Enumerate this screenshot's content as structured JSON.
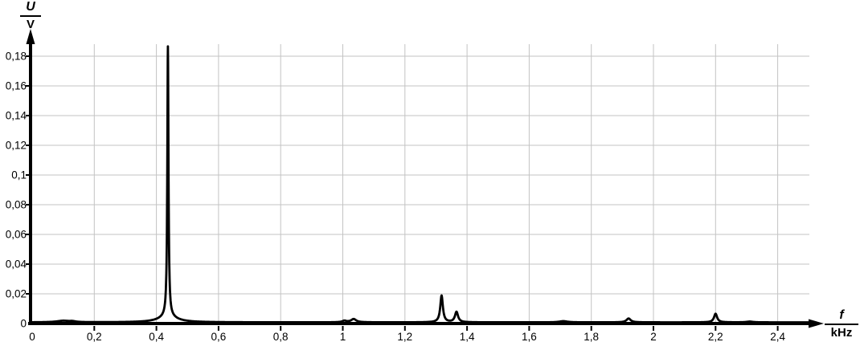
{
  "page": {
    "background": "#ffffff"
  },
  "chart_data": {
    "type": "line",
    "title": "",
    "description": "Frequency spectrum: voltage amplitude U in volts versus frequency f in kilohertz, dominant peak near 0.44 kHz",
    "line_color": "#000000",
    "grid_color": "#c3c3c3",
    "axis_color": "#000000",
    "grid": true,
    "legend": "none",
    "x_axis": {
      "quantity": "f",
      "unit": "kHz",
      "min": 0,
      "max": 2.55,
      "tick_step": 0.2,
      "ticks": [
        {
          "v": 0,
          "label": "0"
        },
        {
          "v": 0.2,
          "label": "0,2"
        },
        {
          "v": 0.4,
          "label": "0,4"
        },
        {
          "v": 0.6,
          "label": "0,6"
        },
        {
          "v": 0.8,
          "label": "0,8"
        },
        {
          "v": 1,
          "label": "1"
        },
        {
          "v": 1.2,
          "label": "1,2"
        },
        {
          "v": 1.4,
          "label": "1,4"
        },
        {
          "v": 1.6,
          "label": "1,6"
        },
        {
          "v": 1.8,
          "label": "1,8"
        },
        {
          "v": 2,
          "label": "2"
        },
        {
          "v": 2.2,
          "label": "2,2"
        },
        {
          "v": 2.4,
          "label": "2,4"
        }
      ]
    },
    "y_axis": {
      "quantity": "U",
      "unit": "V",
      "min": 0,
      "max": 0.19,
      "tick_step": 0.02,
      "ticks": [
        {
          "v": 0,
          "label": "0"
        },
        {
          "v": 0.02,
          "label": "0,02"
        },
        {
          "v": 0.04,
          "label": "0,04"
        },
        {
          "v": 0.06,
          "label": "0,06"
        },
        {
          "v": 0.08,
          "label": "0,08"
        },
        {
          "v": 0.1,
          "label": "0,1"
        },
        {
          "v": 0.12,
          "label": "0,12"
        },
        {
          "v": 0.14,
          "label": "0,14"
        },
        {
          "v": 0.16,
          "label": "0,16"
        },
        {
          "v": 0.18,
          "label": "0,18"
        }
      ]
    },
    "baseline": 0.0008,
    "peaks": [
      {
        "f": 0.1,
        "amplitude": 0.001,
        "width": 0.025
      },
      {
        "f": 0.13,
        "amplitude": 0.0005,
        "width": 0.012
      },
      {
        "f": 0.437,
        "amplitude": 0.182,
        "width": 0.0022
      },
      {
        "f": 0.437,
        "amplitude": 0.0038,
        "width": 0.035
      },
      {
        "f": 1.005,
        "amplitude": 0.001,
        "width": 0.008
      },
      {
        "f": 1.035,
        "amplitude": 0.0022,
        "width": 0.01
      },
      {
        "f": 1.318,
        "amplitude": 0.018,
        "width": 0.005
      },
      {
        "f": 1.366,
        "amplitude": 0.007,
        "width": 0.006
      },
      {
        "f": 1.71,
        "amplitude": 0.0008,
        "width": 0.015
      },
      {
        "f": 1.92,
        "amplitude": 0.0026,
        "width": 0.008
      },
      {
        "f": 2.2,
        "amplitude": 0.0058,
        "width": 0.006
      },
      {
        "f": 2.31,
        "amplitude": 0.0005,
        "width": 0.012
      }
    ],
    "main_peak_readout": {
      "f_khz": 0.44,
      "u_v": 0.187
    }
  }
}
